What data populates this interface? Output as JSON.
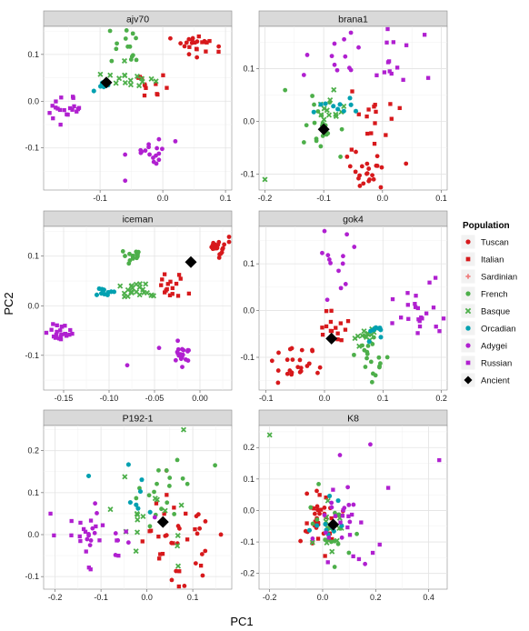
{
  "chart_data": {
    "type": "scatter",
    "xlabel": "PC1",
    "ylabel": "PC2",
    "legend_title": "Population",
    "legend_position": "right",
    "grid": true,
    "legend": [
      {
        "name": "Tuscan",
        "color": "#d7191c",
        "shape": "circle"
      },
      {
        "name": "Italian",
        "color": "#d7191c",
        "shape": "square"
      },
      {
        "name": "Sardinian",
        "color": "#f08080",
        "shape": "plus"
      },
      {
        "name": "French",
        "color": "#4daf4a",
        "shape": "circle"
      },
      {
        "name": "Basque",
        "color": "#4daf4a",
        "shape": "cross"
      },
      {
        "name": "Orcadian",
        "color": "#00a0b0",
        "shape": "star"
      },
      {
        "name": "Adygei",
        "color": "#b020d0",
        "shape": "circle"
      },
      {
        "name": "Russian",
        "color": "#b020d0",
        "shape": "square"
      },
      {
        "name": "Ancient",
        "color": "#000000",
        "shape": "diamond"
      }
    ],
    "facets": [
      {
        "title": "ajv70",
        "xlim": [
          -0.19,
          0.11
        ],
        "ylim": [
          -0.19,
          0.16
        ],
        "xticks": [
          -0.1,
          0.0,
          0.1
        ],
        "xtick_labels": [
          "-0.1",
          "0.0",
          "0.1"
        ],
        "yticks": [
          -0.1,
          0.0,
          0.1
        ],
        "ytick_labels": [
          "-0.1",
          "0.0",
          "0.1"
        ],
        "clusters": [
          {
            "population": "Tuscan",
            "cx": 0.05,
            "cy": 0.12,
            "sx": 0.015,
            "sy": 0.012,
            "n": 14
          },
          {
            "population": "Italian",
            "cx": 0.065,
            "cy": 0.115,
            "sx": 0.012,
            "sy": 0.012,
            "n": 10
          },
          {
            "population": "Italian",
            "cx": -0.02,
            "cy": 0.03,
            "sx": 0.025,
            "sy": 0.015,
            "n": 12
          },
          {
            "population": "French",
            "cx": -0.06,
            "cy": 0.12,
            "sx": 0.015,
            "sy": 0.02,
            "n": 14
          },
          {
            "population": "Basque",
            "cx": -0.05,
            "cy": 0.05,
            "sx": 0.02,
            "sy": 0.012,
            "n": 16
          },
          {
            "population": "Orcadian",
            "cx": -0.1,
            "cy": 0.04,
            "sx": 0.01,
            "sy": 0.01,
            "n": 8
          },
          {
            "population": "Russian",
            "cx": -0.155,
            "cy": -0.02,
            "sx": 0.015,
            "sy": 0.013,
            "n": 20
          },
          {
            "population": "Adygei",
            "cx": -0.02,
            "cy": -0.1,
            "sx": 0.018,
            "sy": 0.013,
            "n": 18
          }
        ],
        "points": [
          {
            "population": "Adygei",
            "x": -0.06,
            "y": -0.17
          },
          {
            "population": "Ancient",
            "x": -0.09,
            "y": 0.04
          }
        ]
      },
      {
        "title": "brana1",
        "xlim": [
          -0.21,
          0.11
        ],
        "ylim": [
          -0.13,
          0.18
        ],
        "xticks": [
          -0.2,
          -0.1,
          0.0,
          0.1
        ],
        "xtick_labels": [
          "-0.2",
          "-0.1",
          "0.0",
          "0.1"
        ],
        "yticks": [
          -0.1,
          0.0,
          0.1
        ],
        "ytick_labels": [
          "-0.1",
          "0.0",
          "0.1"
        ],
        "clusters": [
          {
            "population": "Tuscan",
            "cx": -0.03,
            "cy": -0.1,
            "sx": 0.02,
            "sy": 0.02,
            "n": 22
          },
          {
            "population": "Italian",
            "cx": -0.02,
            "cy": 0.0,
            "sx": 0.025,
            "sy": 0.025,
            "n": 16
          },
          {
            "population": "French",
            "cx": -0.11,
            "cy": -0.02,
            "sx": 0.02,
            "sy": 0.03,
            "n": 20
          },
          {
            "population": "Basque",
            "cx": -0.1,
            "cy": 0.01,
            "sx": 0.015,
            "sy": 0.02,
            "n": 12
          },
          {
            "population": "Orcadian",
            "cx": -0.08,
            "cy": 0.03,
            "sx": 0.015,
            "sy": 0.01,
            "n": 10
          },
          {
            "population": "Adygei",
            "cx": -0.07,
            "cy": 0.12,
            "sx": 0.03,
            "sy": 0.025,
            "n": 12
          },
          {
            "population": "Russian",
            "cx": 0.04,
            "cy": 0.12,
            "sx": 0.035,
            "sy": 0.03,
            "n": 14
          }
        ],
        "points": [
          {
            "population": "Basque",
            "x": -0.2,
            "y": -0.11
          },
          {
            "population": "Tuscan",
            "x": 0.04,
            "y": -0.08
          },
          {
            "population": "Ancient",
            "x": -0.1,
            "y": -0.015
          }
        ]
      },
      {
        "title": "iceman",
        "xlim": [
          -0.172,
          0.035
        ],
        "ylim": [
          -0.17,
          0.16
        ],
        "xticks": [
          -0.15,
          -0.1,
          -0.05,
          0.0
        ],
        "xtick_labels": [
          "-0.15",
          "-0.10",
          "-0.05",
          "0.00"
        ],
        "yticks": [
          -0.1,
          0.0,
          0.1
        ],
        "ytick_labels": [
          "-0.1",
          "0.0",
          "0.1"
        ],
        "clusters": [
          {
            "population": "Tuscan",
            "cx": 0.02,
            "cy": 0.12,
            "sx": 0.006,
            "sy": 0.01,
            "n": 22
          },
          {
            "population": "Italian",
            "cx": -0.03,
            "cy": 0.04,
            "sx": 0.008,
            "sy": 0.012,
            "n": 16
          },
          {
            "population": "French",
            "cx": -0.075,
            "cy": 0.1,
            "sx": 0.006,
            "sy": 0.008,
            "n": 14
          },
          {
            "population": "Basque",
            "cx": -0.07,
            "cy": 0.03,
            "sx": 0.01,
            "sy": 0.008,
            "n": 22
          },
          {
            "population": "Orcadian",
            "cx": -0.105,
            "cy": 0.025,
            "sx": 0.006,
            "sy": 0.006,
            "n": 10
          },
          {
            "population": "Russian",
            "cx": -0.155,
            "cy": -0.055,
            "sx": 0.006,
            "sy": 0.01,
            "n": 22
          },
          {
            "population": "Adygei",
            "cx": -0.02,
            "cy": -0.1,
            "sx": 0.006,
            "sy": 0.014,
            "n": 20
          }
        ],
        "points": [
          {
            "population": "Adygei",
            "x": -0.08,
            "y": -0.12
          },
          {
            "population": "Adygei",
            "x": -0.045,
            "y": -0.085
          },
          {
            "population": "Ancient",
            "x": -0.01,
            "y": 0.088
          }
        ]
      },
      {
        "title": "gok4",
        "xlim": [
          -0.112,
          0.21
        ],
        "ylim": [
          -0.17,
          0.18
        ],
        "xticks": [
          -0.1,
          0.0,
          0.1,
          0.2
        ],
        "xtick_labels": [
          "-0.1",
          "0.0",
          "0.1",
          "0.2"
        ],
        "yticks": [
          -0.1,
          0.0,
          0.1
        ],
        "ytick_labels": [
          "-0.1",
          "0.0",
          "0.1"
        ],
        "clusters": [
          {
            "population": "Tuscan",
            "cx": -0.045,
            "cy": -0.12,
            "sx": 0.025,
            "sy": 0.018,
            "n": 24
          },
          {
            "population": "Italian",
            "cx": 0.015,
            "cy": -0.04,
            "sx": 0.012,
            "sy": 0.02,
            "n": 16
          },
          {
            "population": "French",
            "cx": 0.08,
            "cy": -0.1,
            "sx": 0.015,
            "sy": 0.025,
            "n": 20
          },
          {
            "population": "Basque",
            "cx": 0.07,
            "cy": -0.05,
            "sx": 0.012,
            "sy": 0.012,
            "n": 12
          },
          {
            "population": "Orcadian",
            "cx": 0.085,
            "cy": -0.04,
            "sx": 0.012,
            "sy": 0.01,
            "n": 10
          },
          {
            "population": "Adygei",
            "cx": 0.02,
            "cy": 0.1,
            "sx": 0.015,
            "sy": 0.04,
            "n": 12
          },
          {
            "population": "Russian",
            "cx": 0.16,
            "cy": 0.0,
            "sx": 0.025,
            "sy": 0.025,
            "n": 22
          }
        ],
        "points": [
          {
            "population": "Adygei",
            "x": 0.0,
            "y": 0.17
          },
          {
            "population": "Russian",
            "x": 0.19,
            "y": 0.07
          },
          {
            "population": "Ancient",
            "x": 0.012,
            "y": -0.06
          }
        ]
      },
      {
        "title": "P192-1",
        "xlim": [
          -0.225,
          0.185
        ],
        "ylim": [
          -0.13,
          0.26
        ],
        "xticks": [
          -0.2,
          -0.1,
          0.0,
          0.1
        ],
        "xtick_labels": [
          "-0.2",
          "-0.1",
          "0.0",
          "0.1"
        ],
        "yticks": [
          -0.1,
          0.0,
          0.1,
          0.2
        ],
        "ytick_labels": [
          "-0.1",
          "0.0",
          "0.1",
          "0.2"
        ],
        "clusters": [
          {
            "population": "Tuscan",
            "cx": 0.1,
            "cy": 0.0,
            "sx": 0.04,
            "sy": 0.05,
            "n": 20
          },
          {
            "population": "Italian",
            "cx": 0.05,
            "cy": -0.03,
            "sx": 0.04,
            "sy": 0.045,
            "n": 18
          },
          {
            "population": "French",
            "cx": 0.03,
            "cy": 0.07,
            "sx": 0.05,
            "sy": 0.06,
            "n": 18
          },
          {
            "population": "Basque",
            "cx": 0.02,
            "cy": 0.04,
            "sx": 0.04,
            "sy": 0.06,
            "n": 16
          },
          {
            "population": "Orcadian",
            "cx": -0.02,
            "cy": 0.09,
            "sx": 0.04,
            "sy": 0.04,
            "n": 8
          },
          {
            "population": "Adygei",
            "cx": -0.1,
            "cy": 0.0,
            "sx": 0.05,
            "sy": 0.045,
            "n": 14
          },
          {
            "population": "Russian",
            "cx": -0.12,
            "cy": 0.01,
            "sx": 0.05,
            "sy": 0.045,
            "n": 18
          }
        ],
        "points": [
          {
            "population": "Basque",
            "x": 0.08,
            "y": 0.25
          },
          {
            "population": "Russian",
            "x": -0.21,
            "y": 0.05
          },
          {
            "population": "Ancient",
            "x": 0.035,
            "y": 0.03
          }
        ]
      },
      {
        "title": "K8",
        "xlim": [
          -0.24,
          0.47
        ],
        "ylim": [
          -0.25,
          0.27
        ],
        "xticks": [
          -0.2,
          0.0,
          0.2,
          0.4
        ],
        "xtick_labels": [
          "-0.2",
          "0.0",
          "0.2",
          "0.4"
        ],
        "yticks": [
          -0.2,
          -0.1,
          0.0,
          0.1,
          0.2
        ],
        "ytick_labels": [
          "-0.2",
          "-0.1",
          "0.0",
          "0.1",
          "0.2"
        ],
        "clusters": [
          {
            "population": "Tuscan",
            "cx": -0.03,
            "cy": -0.02,
            "sx": 0.04,
            "sy": 0.05,
            "n": 20
          },
          {
            "population": "Italian",
            "cx": 0.0,
            "cy": -0.04,
            "sx": 0.035,
            "sy": 0.05,
            "n": 18
          },
          {
            "population": "French",
            "cx": 0.03,
            "cy": -0.06,
            "sx": 0.04,
            "sy": 0.05,
            "n": 14
          },
          {
            "population": "Basque",
            "cx": 0.02,
            "cy": -0.07,
            "sx": 0.03,
            "sy": 0.04,
            "n": 12
          },
          {
            "population": "Orcadian",
            "cx": 0.0,
            "cy": -0.05,
            "sx": 0.04,
            "sy": 0.05,
            "n": 10
          },
          {
            "population": "Adygei",
            "cx": 0.05,
            "cy": 0.0,
            "sx": 0.05,
            "sy": 0.07,
            "n": 14
          },
          {
            "population": "Russian",
            "cx": 0.1,
            "cy": -0.05,
            "sx": 0.05,
            "sy": 0.06,
            "n": 16
          }
        ],
        "points": [
          {
            "population": "Basque",
            "x": -0.2,
            "y": 0.24
          },
          {
            "population": "Russian",
            "x": 0.44,
            "y": 0.16
          },
          {
            "population": "Adygei",
            "x": 0.18,
            "y": 0.21
          },
          {
            "population": "Adygei",
            "x": 0.16,
            "y": -0.17
          },
          {
            "population": "Ancient",
            "x": 0.04,
            "y": -0.045
          }
        ]
      }
    ]
  }
}
